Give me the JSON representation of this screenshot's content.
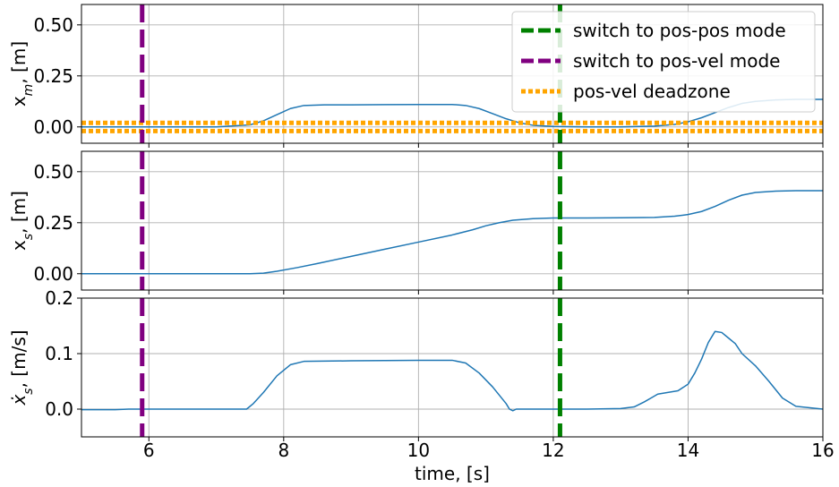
{
  "chart_data": {
    "type": "line",
    "shared_x": {
      "label": "time, [s]",
      "range": [
        5,
        16
      ],
      "ticks": [
        6,
        8,
        10,
        12,
        14,
        16
      ],
      "tick_labels": [
        "6",
        "8",
        "10",
        "12",
        "14",
        "16"
      ]
    },
    "grid": true,
    "colors": {
      "signal": "#1f77b4",
      "pos_pos": "#008000",
      "pos_vel": "#800080",
      "deadzone": "#ffa500"
    },
    "events": {
      "pos_vel_switch_x": 5.9,
      "pos_pos_switch_x": 12.1
    },
    "legend": {
      "placement": "top-right",
      "entries": [
        {
          "label": "switch to pos-pos mode",
          "style": "dashed",
          "color": "#008000"
        },
        {
          "label": "switch to pos-vel mode",
          "style": "dashed",
          "color": "#800080"
        },
        {
          "label": "pos-vel deadzone",
          "style": "dotted",
          "color": "#ffa500"
        }
      ]
    },
    "panels": [
      {
        "ylabel": "x_m, [m]",
        "ylim": [
          -0.08,
          0.6
        ],
        "yticks": [
          0.0,
          0.25,
          0.5
        ],
        "ytick_labels": [
          "0.00",
          "0.25",
          "0.50"
        ],
        "deadzone": [
          -0.02,
          0.02
        ],
        "series": [
          {
            "x": [
              5.0,
              6.0,
              7.0,
              7.5,
              7.7,
              7.9,
              8.1,
              8.3,
              8.6,
              9.0,
              9.5,
              10.0,
              10.5,
              10.7,
              10.9,
              11.1,
              11.3,
              11.5,
              11.7,
              12.0,
              12.5,
              13.0,
              13.5,
              13.8,
              14.0,
              14.2,
              14.4,
              14.6,
              14.8,
              15.0,
              15.3,
              15.6,
              16.0
            ],
            "y": [
              0.0,
              0.0,
              0.0,
              0.01,
              0.03,
              0.06,
              0.09,
              0.105,
              0.108,
              0.108,
              0.109,
              0.11,
              0.11,
              0.105,
              0.09,
              0.065,
              0.04,
              0.02,
              0.008,
              0.002,
              0.0,
              0.0,
              0.004,
              0.012,
              0.025,
              0.045,
              0.07,
              0.095,
              0.115,
              0.125,
              0.132,
              0.135,
              0.135
            ]
          }
        ]
      },
      {
        "ylabel": "x_s, [m]",
        "ylim": [
          -0.08,
          0.6
        ],
        "yticks": [
          0.0,
          0.25,
          0.5
        ],
        "ytick_labels": [
          "0.00",
          "0.25",
          "0.50"
        ],
        "series": [
          {
            "x": [
              5.0,
              6.0,
              7.0,
              7.5,
              7.7,
              7.9,
              8.2,
              8.5,
              9.0,
              9.5,
              10.0,
              10.5,
              10.8,
              11.0,
              11.2,
              11.4,
              11.7,
              12.0,
              12.5,
              13.0,
              13.5,
              13.8,
              14.0,
              14.2,
              14.4,
              14.6,
              14.8,
              15.0,
              15.3,
              15.6,
              16.0
            ],
            "y": [
              0.0,
              0.0,
              0.0,
              0.0,
              0.003,
              0.012,
              0.03,
              0.05,
              0.085,
              0.12,
              0.155,
              0.19,
              0.215,
              0.235,
              0.25,
              0.262,
              0.27,
              0.273,
              0.273,
              0.274,
              0.276,
              0.282,
              0.29,
              0.305,
              0.33,
              0.36,
              0.385,
              0.398,
              0.405,
              0.407,
              0.407
            ]
          }
        ]
      },
      {
        "ylabel": "ẋ_s, [m/s]",
        "ylim": [
          -0.05,
          0.2
        ],
        "yticks": [
          0.0,
          0.1,
          0.2
        ],
        "ytick_labels": [
          "0.0",
          "0.1",
          "0.2"
        ],
        "series": [
          {
            "x": [
              5.0,
              5.5,
              5.7,
              6.0,
              7.0,
              7.45,
              7.55,
              7.7,
              7.9,
              8.1,
              8.3,
              9.0,
              10.0,
              10.5,
              10.7,
              10.9,
              11.1,
              11.3,
              11.35,
              11.4,
              11.45,
              11.6,
              12.0,
              12.5,
              13.0,
              13.2,
              13.35,
              13.45,
              13.55,
              13.7,
              13.85,
              14.0,
              14.1,
              14.2,
              14.3,
              14.4,
              14.5,
              14.6,
              14.7,
              14.8,
              15.0,
              15.2,
              15.4,
              15.6,
              16.0
            ],
            "y": [
              -0.001,
              -0.001,
              0.0,
              0.0,
              0.0,
              0.0,
              0.01,
              0.03,
              0.06,
              0.08,
              0.086,
              0.087,
              0.088,
              0.088,
              0.083,
              0.065,
              0.04,
              0.01,
              0.0,
              -0.003,
              0.0,
              0.0,
              0.0,
              0.0,
              0.001,
              0.004,
              0.013,
              0.02,
              0.027,
              0.03,
              0.033,
              0.045,
              0.065,
              0.09,
              0.12,
              0.14,
              0.138,
              0.128,
              0.118,
              0.1,
              0.078,
              0.05,
              0.02,
              0.005,
              0.0
            ]
          }
        ]
      }
    ]
  }
}
